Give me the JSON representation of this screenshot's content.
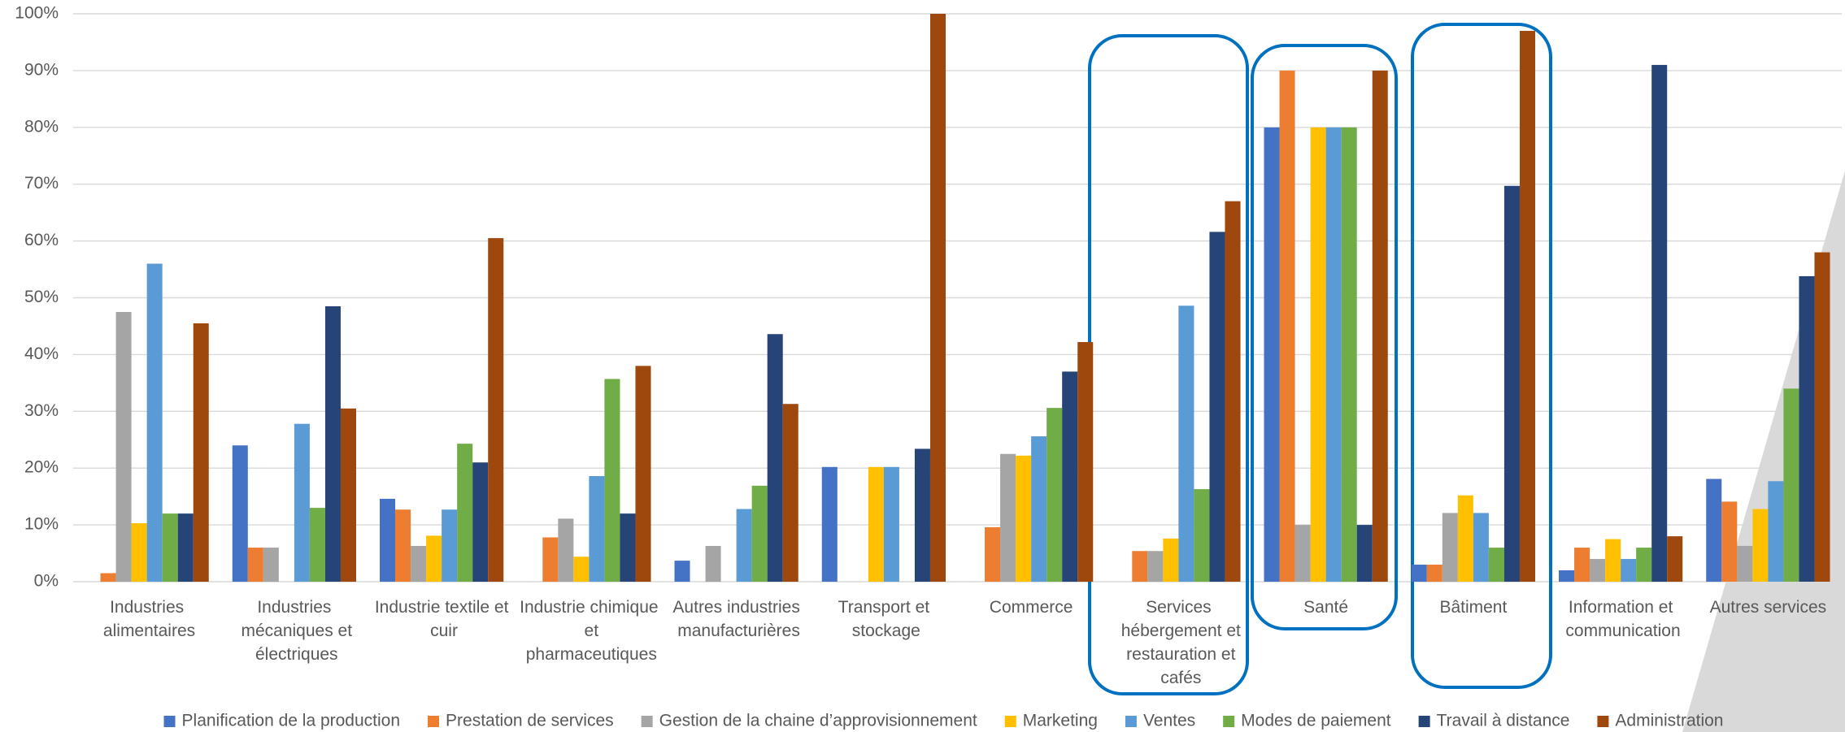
{
  "chart_data": {
    "type": "bar",
    "categories": [
      "Industries alimentaires",
      "Industries mécaniques et électriques",
      "Industrie textile et cuir",
      "Industrie chimique et pharmaceutiques",
      "Autres industries manufacturières",
      "Transport et stockage",
      "Commerce",
      "Services hébergement et restauration et cafés",
      "Santé",
      "Bâtiment",
      "Information et communication",
      "Autres services"
    ],
    "series": [
      {
        "name": "Planification de la production",
        "color": "#4472c4",
        "values": [
          0,
          24,
          14.6,
          0,
          3.7,
          20.2,
          0,
          0,
          80,
          3,
          2,
          18.1
        ]
      },
      {
        "name": "Prestation de services",
        "color": "#ed7d31",
        "values": [
          1.5,
          6,
          12.7,
          7.8,
          0,
          0,
          9.6,
          5.4,
          90,
          3,
          6,
          14.1
        ]
      },
      {
        "name": "Gestion de la chaine d’approvisionnement",
        "color": "#a5a5a5",
        "values": [
          47.5,
          6,
          6.3,
          11.1,
          6.3,
          0,
          22.5,
          5.4,
          10,
          12.1,
          4,
          6.3
        ]
      },
      {
        "name": "Marketing",
        "color": "#ffc000",
        "values": [
          10.3,
          0,
          8.1,
          4.4,
          0,
          20.2,
          22.2,
          7.6,
          80,
          15.2,
          7.5,
          12.8
        ]
      },
      {
        "name": "Ventes",
        "color": "#5b9bd5",
        "values": [
          56,
          27.8,
          12.7,
          18.6,
          12.8,
          20.2,
          25.6,
          48.6,
          80,
          12.1,
          4,
          17.7
        ]
      },
      {
        "name": "Modes de paiement",
        "color": "#70ad47",
        "values": [
          12,
          13,
          24.3,
          35.7,
          16.9,
          0,
          30.6,
          16.3,
          80,
          6,
          6,
          34
        ]
      },
      {
        "name": "Travail à distance",
        "color": "#264478",
        "values": [
          12,
          48.5,
          21,
          12,
          43.6,
          23.4,
          37,
          61.6,
          10,
          69.7,
          91,
          53.8
        ]
      },
      {
        "name": "Administration",
        "color": "#9e480e",
        "values": [
          45.5,
          30.5,
          60.5,
          38,
          31.3,
          100,
          42.2,
          67,
          90,
          97,
          8,
          58
        ]
      }
    ],
    "ylim": [
      0,
      100
    ],
    "yticks": [
      {
        "value": 0,
        "label": "0%"
      },
      {
        "value": 10,
        "label": "10%"
      },
      {
        "value": 20,
        "label": "20%"
      },
      {
        "value": 30,
        "label": "30%"
      },
      {
        "value": 40,
        "label": "40%"
      },
      {
        "value": 50,
        "label": "50%"
      },
      {
        "value": 60,
        "label": "60%"
      },
      {
        "value": 70,
        "label": "70%"
      },
      {
        "value": 80,
        "label": "80%"
      },
      {
        "value": 90,
        "label": "90%"
      },
      {
        "value": 100,
        "label": "100%"
      }
    ],
    "grid": true,
    "legend": "bottom"
  }
}
